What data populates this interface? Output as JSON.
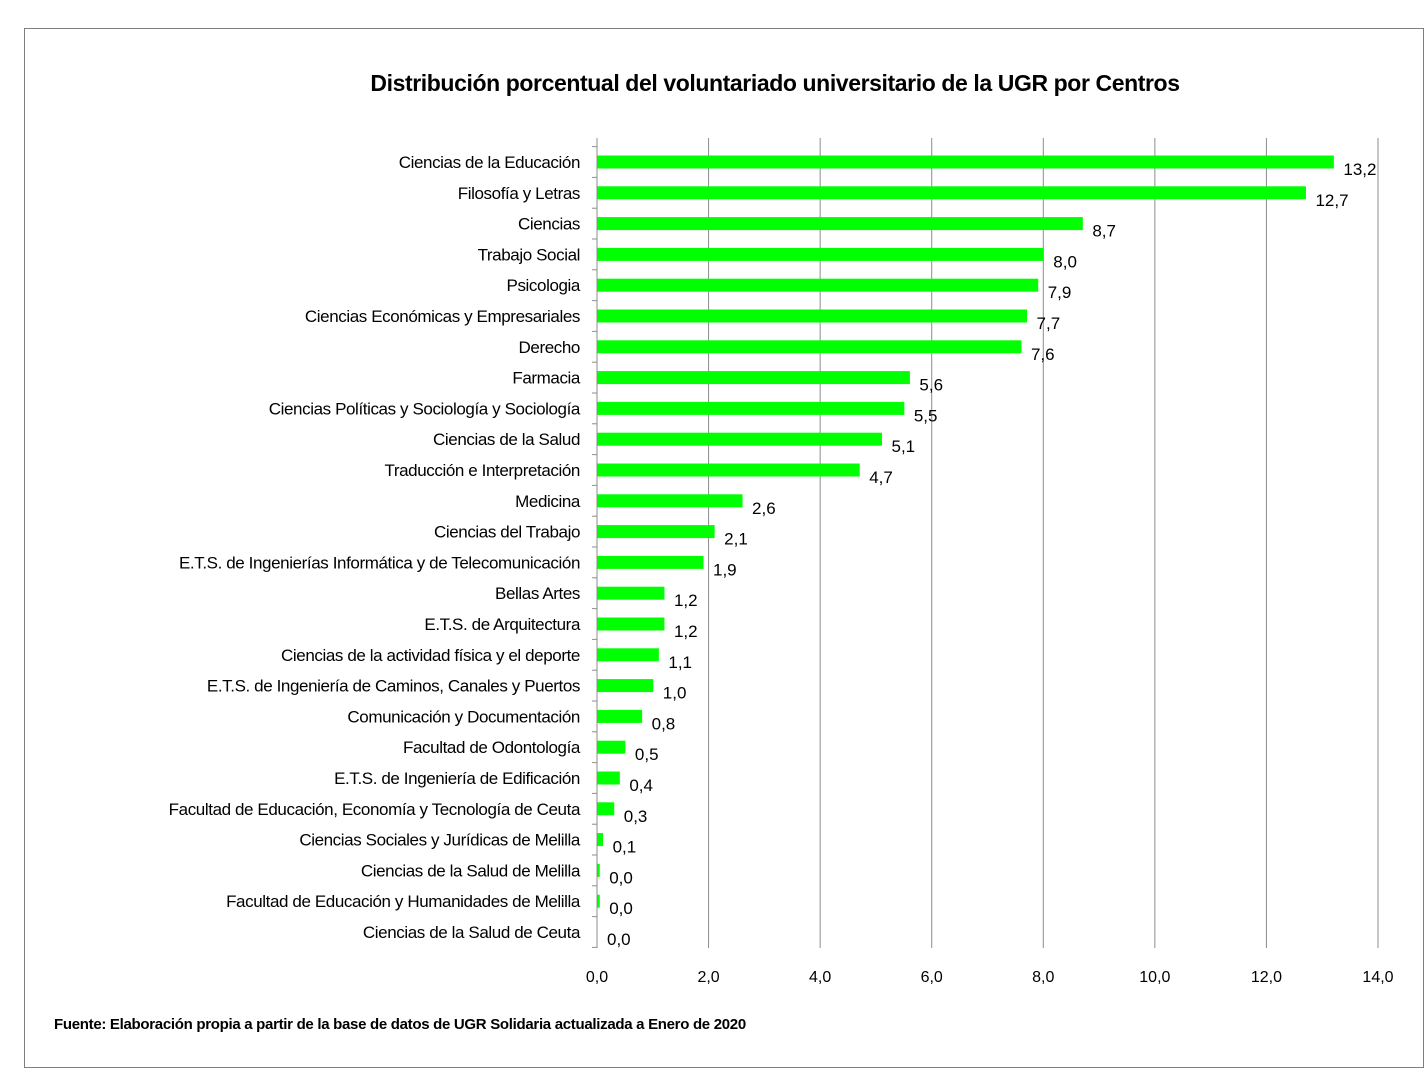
{
  "footer": {
    "source": "Fuente: Elaboración  propia a partir de la base de datos de UGR Solidaria  actualizada a Enero de 2020"
  },
  "colors": {
    "bar": "#00ff00",
    "grid": "#8c8c8c",
    "axis": "#8c8c8c",
    "frame": "#7f7f7f"
  },
  "chart_data": {
    "type": "bar",
    "orientation": "horizontal",
    "title": "Distribución porcentual del voluntariado universitario de la UGR por Centros",
    "xlabel": "",
    "ylabel": "",
    "xlim": [
      0,
      14
    ],
    "grid": true,
    "legend": "none",
    "tick_labels": [
      "0,0",
      "2,0",
      "4,0",
      "6,0",
      "8,0",
      "10,0",
      "12,0",
      "14,0"
    ],
    "categories": [
      "Ciencias de la Educación",
      "Filosofía y Letras",
      "Ciencias",
      "Trabajo Social",
      "Psicologia",
      "Ciencias Económicas y Empresariales",
      "Derecho",
      "Farmacia",
      "Ciencias Políticas y Sociología y Sociología",
      "Ciencias de la Salud",
      "Traducción e Interpretación",
      "Medicina",
      "Ciencias del Trabajo",
      "E.T.S. de Ingenierías Informática y de Telecomunicación",
      "Bellas Artes",
      "E.T.S. de Arquitectura",
      "Ciencias de la actividad física y el deporte",
      "E.T.S. de Ingeniería de Caminos, Canales y Puertos",
      "Comunicación y Documentación",
      "Facultad de Odontología",
      "E.T.S. de Ingeniería de Edificación",
      "Facultad de Educación, Economía y Tecnología de Ceuta",
      "Ciencias Sociales y Jurídicas de Melilla",
      "Ciencias de la Salud de Melilla",
      "Facultad de Educación y Humanidades de Melilla",
      "Ciencias de la Salud de Ceuta"
    ],
    "values": [
      13.2,
      12.7,
      8.7,
      8.0,
      7.9,
      7.7,
      7.6,
      5.6,
      5.5,
      5.1,
      4.7,
      2.6,
      2.1,
      1.9,
      1.2,
      1.2,
      1.1,
      1.0,
      0.8,
      0.5,
      0.4,
      0.3,
      0.1,
      0.04,
      0.04,
      0.0
    ],
    "value_labels": [
      "13,2",
      "12,7",
      "8,7",
      "8,0",
      "7,9",
      "7,7",
      "7,6",
      "5,6",
      "5,5",
      "5,1",
      "4,7",
      "2,6",
      "2,1",
      "1,9",
      "1,2",
      "1,2",
      "1,1",
      "1,0",
      "0,8",
      "0,5",
      "0,4",
      "0,3",
      "0,1",
      "0,0",
      "0,0",
      "0,0"
    ]
  }
}
